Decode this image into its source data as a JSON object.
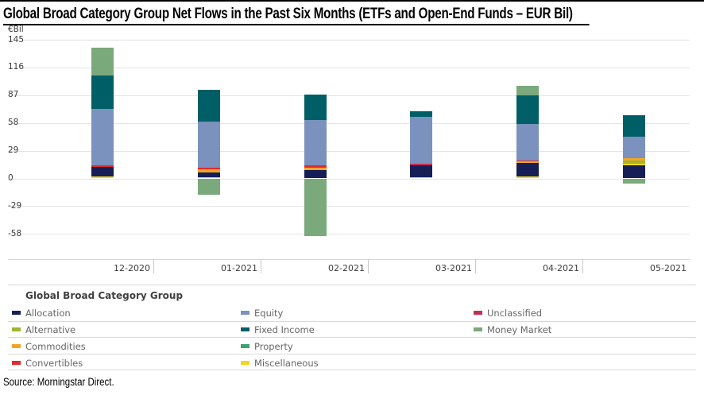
{
  "page": {
    "source": "Source: Morningstar Direct."
  },
  "chart_data": {
    "type": "bar",
    "stacked": true,
    "title": "Global Broad Category Group Net Flows in the Past Six Months (ETFs and Open-End Funds – EUR Bil)",
    "unit_label": "€Bil",
    "grid": true,
    "categories": [
      "12-2020",
      "01-2021",
      "02-2021",
      "03-2021",
      "04-2021",
      "05-2021"
    ],
    "y_ticks": [
      145,
      116,
      87,
      58,
      29,
      0,
      -29,
      -58
    ],
    "ylim": [
      -72,
      152
    ],
    "legend_title": "Global Broad Category Group",
    "colors": {
      "Allocation": "#151f56",
      "Alternative": "#a2b52c",
      "Commodities": "#f3a32a",
      "Convertibles": "#e3292b",
      "Equity": "#7a92bd",
      "Fixed Income": "#005f66",
      "Property": "#3ba273",
      "Miscellaneous": "#f5d41d",
      "Unclassified": "#c42f55",
      "Money Market": "#7aa97c"
    },
    "bars": [
      {
        "category": "12-2020",
        "segments": [
          {
            "name": "Miscellaneous",
            "value": 2
          },
          {
            "name": "Allocation",
            "value": 10
          },
          {
            "name": "Convertibles",
            "value": 2
          },
          {
            "name": "Equity",
            "value": 59
          },
          {
            "name": "Fixed Income",
            "value": 35
          },
          {
            "name": "Money Market",
            "value": 29
          }
        ]
      },
      {
        "category": "01-2021",
        "segments": [
          {
            "name": "Miscellaneous",
            "value": 1.5
          },
          {
            "name": "Allocation",
            "value": 5
          },
          {
            "name": "Commodities",
            "value": 3
          },
          {
            "name": "Convertibles",
            "value": 2
          },
          {
            "name": "Equity",
            "value": 48
          },
          {
            "name": "Fixed Income",
            "value": 33
          },
          {
            "name": "Money Market",
            "value": -17
          }
        ]
      },
      {
        "category": "02-2021",
        "segments": [
          {
            "name": "Allocation",
            "value": 8.5
          },
          {
            "name": "Commodities",
            "value": 2.5
          },
          {
            "name": "Convertibles",
            "value": 2.5
          },
          {
            "name": "Equity",
            "value": 48
          },
          {
            "name": "Fixed Income",
            "value": 26
          },
          {
            "name": "Money Market",
            "value": -60
          }
        ]
      },
      {
        "category": "03-2021",
        "segments": [
          {
            "name": "Miscellaneous",
            "value": 1.5
          },
          {
            "name": "Allocation",
            "value": 12
          },
          {
            "name": "Unclassified",
            "value": 2
          },
          {
            "name": "Equity",
            "value": 49
          },
          {
            "name": "Fixed Income",
            "value": 6
          }
        ]
      },
      {
        "category": "04-2021",
        "segments": [
          {
            "name": "Miscellaneous",
            "value": 2
          },
          {
            "name": "Allocation",
            "value": 14
          },
          {
            "name": "Commodities",
            "value": 2
          },
          {
            "name": "Convertibles",
            "value": 1
          },
          {
            "name": "Equity",
            "value": 38
          },
          {
            "name": "Fixed Income",
            "value": 30
          },
          {
            "name": "Money Market",
            "value": 10
          }
        ]
      },
      {
        "category": "05-2021",
        "segments": [
          {
            "name": "Allocation",
            "value": 14
          },
          {
            "name": "Miscellaneous",
            "value": 1.5
          },
          {
            "name": "Alternative",
            "value": 3
          },
          {
            "name": "Commodities",
            "value": 2.5
          },
          {
            "name": "Equity",
            "value": 23
          },
          {
            "name": "Fixed Income",
            "value": 22
          },
          {
            "name": "Money Market",
            "value": -5
          }
        ]
      }
    ],
    "legend_columns": [
      [
        "Allocation",
        "Alternative",
        "Commodities",
        "Convertibles"
      ],
      [
        "Equity",
        "Fixed Income",
        "Property",
        "Miscellaneous"
      ],
      [
        "Unclassified",
        "Money Market"
      ]
    ]
  }
}
